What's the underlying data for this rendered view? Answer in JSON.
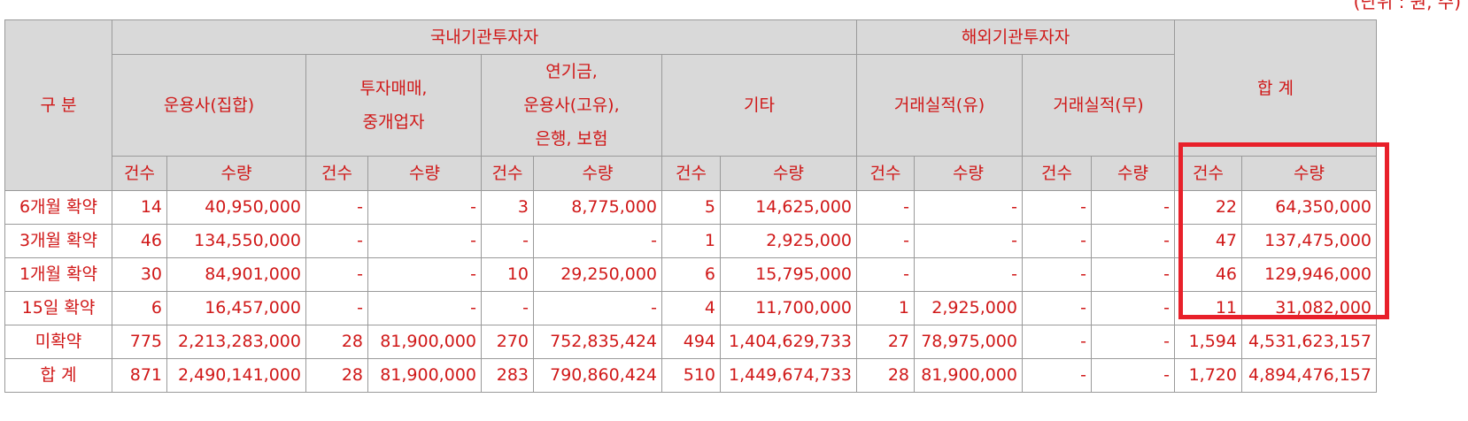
{
  "unit_note": "(단위 : 원, 주)",
  "header": {
    "category": "구 분",
    "domestic": "국내기관투자자",
    "foreign": "해외기관투자자",
    "total": "합 계",
    "domestic_groups": [
      "운용사(집합)",
      "투자매매,\n중개업자",
      "연기금,\n운용사(고유),\n은행, 보험",
      "기타"
    ],
    "foreign_groups": [
      "거래실적(유)",
      "거래실적(무)"
    ],
    "count_label": "건수",
    "qty_label": "수량"
  },
  "rows": [
    {
      "label": "6개월 확약",
      "cells": [
        "14",
        "40,950,000",
        "-",
        "-",
        "3",
        "8,775,000",
        "5",
        "14,625,000",
        "-",
        "-",
        "-",
        "-",
        "22",
        "64,350,000"
      ]
    },
    {
      "label": "3개월 확약",
      "cells": [
        "46",
        "134,550,000",
        "-",
        "-",
        "-",
        "-",
        "1",
        "2,925,000",
        "-",
        "-",
        "-",
        "-",
        "47",
        "137,475,000"
      ]
    },
    {
      "label": "1개월 확약",
      "cells": [
        "30",
        "84,901,000",
        "-",
        "-",
        "10",
        "29,250,000",
        "6",
        "15,795,000",
        "-",
        "-",
        "-",
        "-",
        "46",
        "129,946,000"
      ]
    },
    {
      "label": "15일 확약",
      "cells": [
        "6",
        "16,457,000",
        "-",
        "-",
        "-",
        "-",
        "4",
        "11,700,000",
        "1",
        "2,925,000",
        "-",
        "-",
        "11",
        "31,082,000"
      ]
    },
    {
      "label": "미확약",
      "cells": [
        "775",
        "2,213,283,000",
        "28",
        "81,900,000",
        "270",
        "752,835,424",
        "494",
        "1,404,629,733",
        "27",
        "78,975,000",
        "-",
        "-",
        "1,594",
        "4,531,623,157"
      ]
    },
    {
      "label": "합 계",
      "cells": [
        "871",
        "2,490,141,000",
        "28",
        "81,900,000",
        "283",
        "790,860,424",
        "510",
        "1,449,674,733",
        "28",
        "81,900,000",
        "-",
        "-",
        "1,720",
        "4,894,476,157"
      ]
    }
  ],
  "colors": {
    "text": "#d01818",
    "header_bg": "#d9d9d9",
    "border": "#9a9a9a",
    "highlight": "#e8202a"
  }
}
